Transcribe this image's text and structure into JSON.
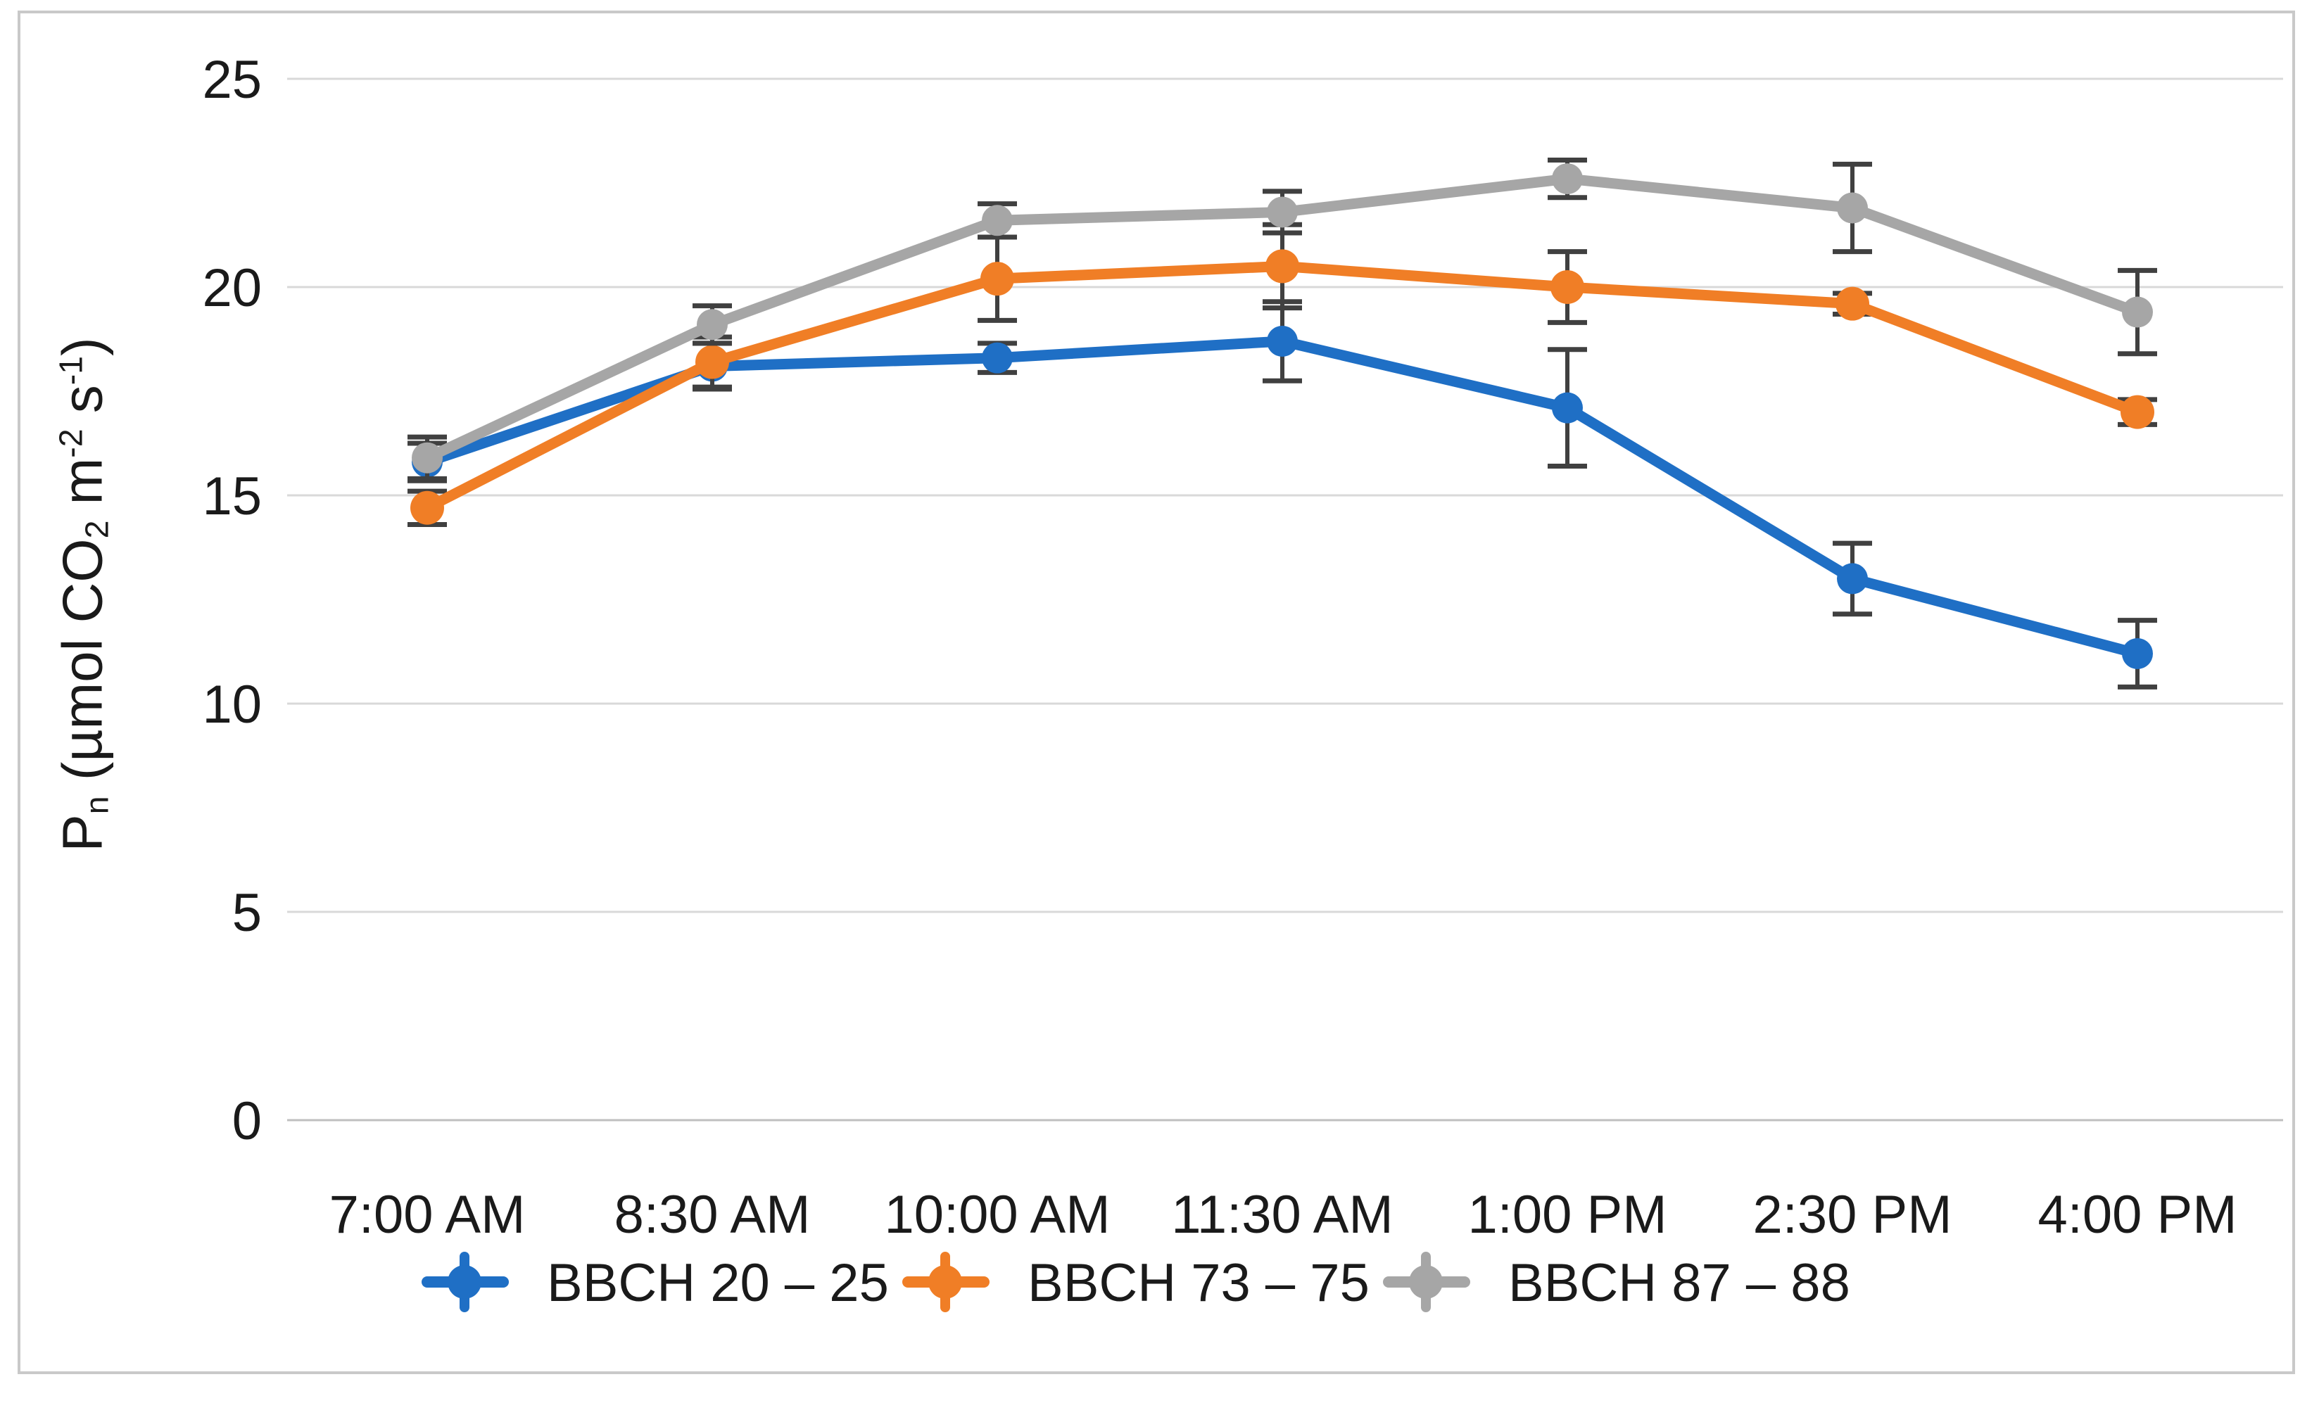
{
  "figure": {
    "background": "#FFFFFF",
    "frame_border_color": "#C9C9C9"
  },
  "chart_data": {
    "type": "line",
    "title": "",
    "xlabel": "",
    "ylabel": "Pn (µmol CO2 m-2 s-1)",
    "ylabel_parts": [
      "P",
      "n",
      " (µmol CO",
      "2",
      " m",
      "-2",
      " s",
      "-1",
      ")"
    ],
    "ylim": [
      0,
      25
    ],
    "yticks": [
      0,
      5,
      10,
      15,
      20,
      25
    ],
    "grid": "horizontal",
    "grid_color": "#D9D9D9",
    "axis_line_color": "#BFBFBF",
    "error_bar_color": "#404040",
    "text_color": "#1A1A1A",
    "legend_position": "bottom",
    "categories": [
      "7:00 AM",
      "8:30 AM",
      "10:00 AM",
      "11:30 AM",
      "1:00 PM",
      "2:30 PM",
      "4:00 PM"
    ],
    "series": [
      {
        "name": "BBCH 20 – 25",
        "color": "#1F6FC5",
        "values": [
          15.8,
          18.1,
          18.3,
          18.7,
          17.1,
          13.0,
          11.2
        ],
        "errors": [
          0.45,
          0.55,
          0.35,
          0.95,
          1.4,
          0.85,
          0.8
        ]
      },
      {
        "name": "BBCH 73 – 75",
        "color": "#F07E26",
        "values": [
          14.7,
          18.2,
          20.2,
          20.5,
          20.0,
          19.6,
          17.0
        ],
        "errors": [
          0.4,
          0.6,
          1.0,
          1.0,
          0.85,
          0.25,
          0.3
        ]
      },
      {
        "name": "BBCH 87 – 88",
        "color": "#A6A6A6",
        "values": [
          15.9,
          19.1,
          21.6,
          21.8,
          22.6,
          21.9,
          19.4
        ],
        "errors": [
          0.5,
          0.45,
          0.4,
          0.5,
          0.45,
          1.05,
          1.0
        ]
      }
    ]
  }
}
